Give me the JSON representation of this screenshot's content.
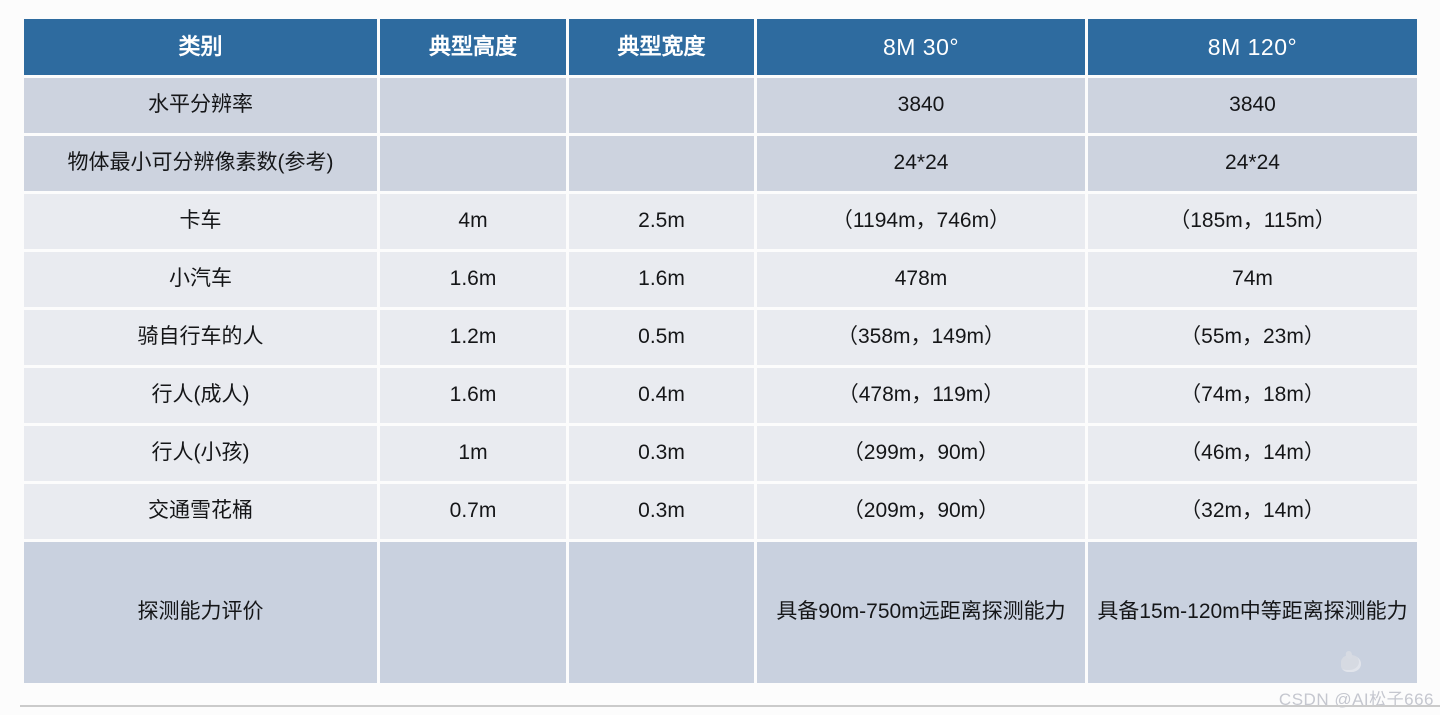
{
  "colors": {
    "header_bg": "#2e6b9f",
    "dark_row_bg": "#cdd3df",
    "light_row_bg": "#e9ebf0",
    "tall_row_bg": "#c9d1df",
    "header_text": "#ffffff",
    "body_text": "#151618",
    "watermark_text_color": "#c5c7cf",
    "divider_color": "#cbcbcb"
  },
  "table": {
    "columns": [
      {
        "label": "类别",
        "latin": false
      },
      {
        "label": "典型高度",
        "latin": false
      },
      {
        "label": "典型宽度",
        "latin": false
      },
      {
        "label": "8M 30°",
        "latin": true
      },
      {
        "label": "8M 120°",
        "latin": true
      }
    ],
    "rows": [
      {
        "tone": "dark",
        "cells": [
          "水平分辨率",
          "",
          "",
          "3840",
          "3840"
        ]
      },
      {
        "tone": "dark",
        "cells": [
          "物体最小可分辨像素数(参考)",
          "",
          "",
          "24*24",
          "24*24"
        ]
      },
      {
        "tone": "light",
        "cells": [
          "卡车",
          "4m",
          "2.5m",
          "（1194m，746m）",
          "（185m，115m）"
        ]
      },
      {
        "tone": "light",
        "cells": [
          "小汽车",
          "1.6m",
          "1.6m",
          "478m",
          "74m"
        ]
      },
      {
        "tone": "light",
        "cells": [
          "骑自行车的人",
          "1.2m",
          "0.5m",
          "（358m，149m）",
          "（55m，23m）"
        ]
      },
      {
        "tone": "light",
        "cells": [
          "行人(成人)",
          "1.6m",
          "0.4m",
          "（478m，119m）",
          "（74m，18m）"
        ]
      },
      {
        "tone": "light",
        "cells": [
          "行人(小孩)",
          "1m",
          "0.3m",
          "（299m，90m）",
          "（46m，14m）"
        ]
      },
      {
        "tone": "light",
        "cells": [
          "交通雪花桶",
          "0.7m",
          "0.3m",
          "（209m，90m）",
          "（32m，14m）"
        ]
      },
      {
        "tone": "tall",
        "cells": [
          "探测能力评价",
          "",
          "",
          "具备90m-750m远距离探测能力",
          "具备15m-120m中等距离探测能力"
        ]
      }
    ]
  },
  "watermark": {
    "text": "CSDN @AI松子666",
    "icon": "hand-icon"
  }
}
